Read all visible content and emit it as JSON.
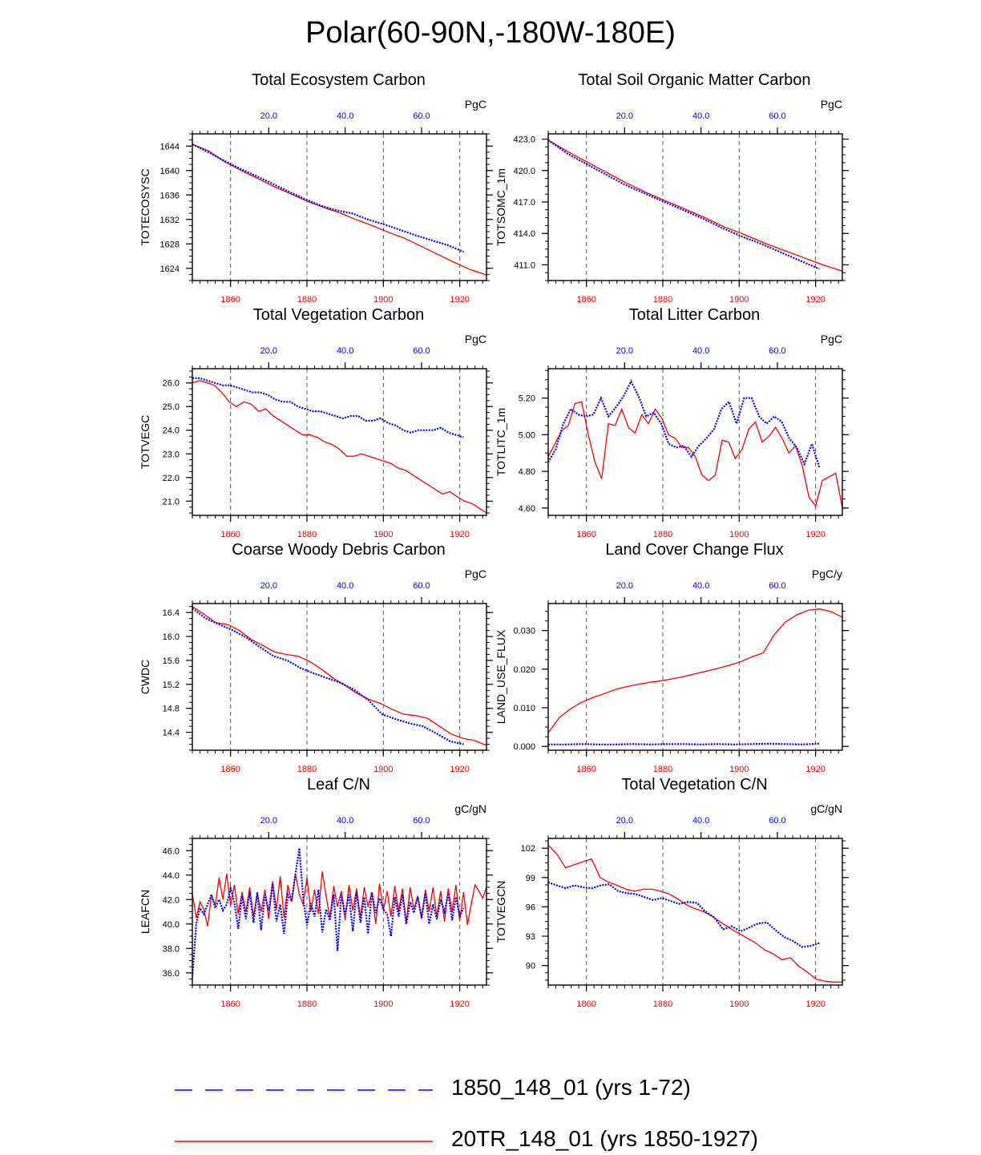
{
  "figure": {
    "title": "Polar(60-90N,-180W-180E)",
    "legend": {
      "items": [
        {
          "label": "1850_148_01 (yrs 1-72)",
          "color": "#0000ff",
          "style": "dashed"
        },
        {
          "label": "20TR_148_01 (yrs 1850-1927)",
          "color": "#ff0000",
          "style": "solid"
        }
      ]
    },
    "colors": {
      "control": "#0000ff",
      "transient": "#ff0000"
    }
  },
  "chart_data": [
    {
      "type": "line",
      "title": "Total Ecosystem Carbon",
      "ylabel": "TOTECOSYSC",
      "units": "PgC",
      "ylim": [
        1622,
        1646
      ],
      "yticks": [
        1624,
        1628,
        1632,
        1636,
        1640,
        1644
      ],
      "ytick_labels": [
        "1624",
        "1628",
        "1632",
        "1636",
        "1640",
        "1644"
      ],
      "xlim_bottom": [
        1850,
        1927
      ],
      "xticks_bottom": [
        "1860",
        "1880",
        "1900",
        "1920"
      ],
      "xticks_top": [
        "20.0",
        "40.0",
        "60.0"
      ],
      "series": [
        {
          "name": "20TR_148_01",
          "x_start": 1850,
          "x_end": 1927,
          "values": [
            1644.3,
            1643.2,
            1641.4,
            1640.0,
            1638.7,
            1637.4,
            1636.2,
            1635.0,
            1634.0,
            1633.1,
            1632.0,
            1631.0,
            1629.9,
            1628.9,
            1627.6,
            1626.3,
            1625.0,
            1623.8,
            1622.9
          ]
        },
        {
          "name": "1850_148_01",
          "x_start": 1850,
          "x_end": 1921,
          "values": [
            1644.3,
            1643.0,
            1641.6,
            1640.3,
            1639.1,
            1637.9,
            1636.6,
            1635.4,
            1634.3,
            1633.5,
            1633.0,
            1632.0,
            1631.2,
            1630.3,
            1629.4,
            1628.6,
            1627.8,
            1626.7
          ]
        }
      ]
    },
    {
      "type": "line",
      "title": "Total Soil Organic Matter Carbon",
      "ylabel": "TOTSOMC_1m",
      "units": "PgC",
      "ylim": [
        409.5,
        423.5
      ],
      "yticks": [
        411,
        414,
        417,
        420,
        423
      ],
      "ytick_labels": [
        "411.0",
        "414.0",
        "417.0",
        "420.0",
        "423.0"
      ],
      "xlim_bottom": [
        1850,
        1927
      ],
      "xticks_bottom": [
        "1860",
        "1880",
        "1900",
        "1920"
      ],
      "xticks_top": [
        "20.0",
        "40.0",
        "60.0"
      ],
      "series": [
        {
          "name": "20TR_148_01",
          "x_start": 1850,
          "x_end": 1927,
          "values": [
            422.9,
            421.8,
            420.8,
            419.8,
            418.8,
            417.9,
            417.1,
            416.3,
            415.5,
            414.6,
            413.9,
            413.1,
            412.4,
            411.7,
            411.0,
            410.4
          ]
        },
        {
          "name": "1850_148_01",
          "x_start": 1850,
          "x_end": 1921,
          "values": [
            422.9,
            421.6,
            420.6,
            419.6,
            418.6,
            417.8,
            417.0,
            416.2,
            415.4,
            414.5,
            413.7,
            413.0,
            412.2,
            411.4,
            410.6
          ]
        }
      ]
    },
    {
      "type": "line",
      "title": "Total Vegetation Carbon",
      "ylabel": "TOTVEGC",
      "units": "PgC",
      "ylim": [
        20.4,
        26.6
      ],
      "yticks": [
        21,
        22,
        23,
        24,
        25,
        26
      ],
      "ytick_labels": [
        "21.0",
        "22.0",
        "23.0",
        "24.0",
        "25.0",
        "26.0"
      ],
      "xlim_bottom": [
        1850,
        1927
      ],
      "xticks_bottom": [
        "1860",
        "1880",
        "1900",
        "1920"
      ],
      "xticks_top": [
        "20.0",
        "40.0",
        "60.0"
      ],
      "series": [
        {
          "name": "20TR_148_01",
          "x_start": 1850,
          "x_end": 1927,
          "values": [
            26.0,
            26.1,
            26.0,
            25.9,
            25.6,
            25.2,
            25.0,
            25.2,
            25.1,
            24.8,
            24.9,
            24.6,
            24.4,
            24.2,
            24.0,
            23.8,
            23.8,
            23.7,
            23.5,
            23.4,
            23.2,
            22.9,
            22.9,
            23.0,
            22.9,
            22.8,
            22.7,
            22.6,
            22.4,
            22.3,
            22.1,
            21.9,
            21.7,
            21.5,
            21.3,
            21.4,
            21.2,
            21.0,
            20.9,
            20.7,
            20.5
          ]
        },
        {
          "name": "1850_148_01",
          "x_start": 1850,
          "x_end": 1921,
          "values": [
            26.2,
            26.2,
            26.1,
            26.0,
            25.9,
            25.9,
            25.8,
            25.7,
            25.6,
            25.6,
            25.5,
            25.3,
            25.2,
            25.2,
            25.0,
            24.9,
            24.8,
            24.8,
            24.7,
            24.6,
            24.5,
            24.6,
            24.6,
            24.4,
            24.4,
            24.5,
            24.3,
            24.2,
            24.0,
            23.9,
            24.0,
            24.0,
            24.0,
            24.1,
            23.9,
            23.8,
            23.7
          ]
        }
      ]
    },
    {
      "type": "line",
      "title": "Total Litter Carbon",
      "ylabel": "TOTLITC_1m",
      "units": "PgC",
      "ylim": [
        4.56,
        5.36
      ],
      "yticks": [
        4.6,
        4.8,
        5.0,
        5.2
      ],
      "ytick_labels": [
        "4.60",
        "4.80",
        "5.00",
        "5.20"
      ],
      "xlim_bottom": [
        1850,
        1927
      ],
      "xticks_bottom": [
        "1860",
        "1880",
        "1900",
        "1920"
      ],
      "xticks_top": [
        "20.0",
        "40.0",
        "60.0"
      ],
      "series": [
        {
          "name": "20TR_148_01",
          "x_start": 1850,
          "x_end": 1927,
          "values": [
            4.88,
            4.95,
            5.02,
            5.05,
            5.17,
            5.18,
            5.0,
            4.85,
            4.76,
            5.06,
            5.05,
            5.14,
            5.04,
            5.01,
            5.11,
            5.06,
            5.14,
            5.09,
            5.0,
            4.98,
            4.93,
            4.93,
            4.88,
            4.78,
            4.75,
            4.78,
            4.97,
            4.96,
            4.87,
            4.92,
            5.03,
            5.07,
            4.96,
            4.99,
            5.04,
            4.98,
            4.9,
            4.94,
            4.83,
            4.66,
            4.61,
            4.75,
            4.77,
            4.79,
            4.6
          ]
        },
        {
          "name": "1850_148_01",
          "x_start": 1850,
          "x_end": 1921,
          "values": [
            4.85,
            4.92,
            5.06,
            5.14,
            5.11,
            5.1,
            5.11,
            5.2,
            5.1,
            5.15,
            5.21,
            5.29,
            5.21,
            5.1,
            5.12,
            5.06,
            4.95,
            4.93,
            4.94,
            4.88,
            4.94,
            4.98,
            5.03,
            5.14,
            5.18,
            5.06,
            5.2,
            5.2,
            5.1,
            5.06,
            5.1,
            5.07,
            4.98,
            4.93,
            4.84,
            4.95,
            4.82
          ]
        }
      ]
    },
    {
      "type": "line",
      "title": "Coarse Woody Debris Carbon",
      "ylabel": "CWDC",
      "units": "PgC",
      "ylim": [
        14.1,
        16.55
      ],
      "yticks": [
        14.4,
        14.8,
        15.2,
        15.6,
        16.0,
        16.4
      ],
      "ytick_labels": [
        "14.4",
        "14.8",
        "15.2",
        "15.6",
        "16.0",
        "16.4"
      ],
      "xlim_bottom": [
        1850,
        1927
      ],
      "xticks_bottom": [
        "1860",
        "1880",
        "1900",
        "1920"
      ],
      "xticks_top": [
        "20.0",
        "40.0",
        "60.0"
      ],
      "series": [
        {
          "name": "20TR_148_01",
          "x_start": 1850,
          "x_end": 1927,
          "values": [
            16.5,
            16.37,
            16.23,
            16.2,
            16.1,
            15.95,
            15.85,
            15.74,
            15.7,
            15.67,
            15.58,
            15.45,
            15.3,
            15.18,
            15.05,
            14.95,
            14.88,
            14.78,
            14.7,
            14.68,
            14.63,
            14.5,
            14.37,
            14.3,
            14.26,
            14.18
          ]
        },
        {
          "name": "1850_148_01",
          "x_start": 1850,
          "x_end": 1921,
          "values": [
            16.47,
            16.3,
            16.2,
            16.1,
            15.98,
            15.82,
            15.67,
            15.6,
            15.47,
            15.38,
            15.3,
            15.22,
            15.1,
            14.93,
            14.7,
            14.62,
            14.55,
            14.5,
            14.38,
            14.25,
            14.2
          ]
        }
      ]
    },
    {
      "type": "line",
      "title": "Land Cover Change Flux",
      "ylabel": "LAND_USE_FLUX",
      "units": "PgC/y",
      "ylim": [
        -0.001,
        0.037
      ],
      "yticks": [
        0.0,
        0.01,
        0.02,
        0.03
      ],
      "ytick_labels": [
        "0.000",
        "0.010",
        "0.020",
        "0.030"
      ],
      "xlim_bottom": [
        1850,
        1927
      ],
      "xticks_bottom": [
        "1860",
        "1880",
        "1900",
        "1920"
      ],
      "xticks_top": [
        "20.0",
        "40.0",
        "60.0"
      ],
      "series": [
        {
          "name": "20TR_148_01",
          "x_start": 1850,
          "x_end": 1927,
          "values": [
            0.0035,
            0.0075,
            0.0098,
            0.0115,
            0.0127,
            0.0137,
            0.0148,
            0.0155,
            0.0161,
            0.0166,
            0.017,
            0.0175,
            0.0181,
            0.0188,
            0.0195,
            0.0202,
            0.021,
            0.0219,
            0.0232,
            0.0242,
            0.029,
            0.0323,
            0.0341,
            0.0353,
            0.0356,
            0.0349,
            0.0335
          ]
        },
        {
          "name": "1850_148_01",
          "x_start": 1850,
          "x_end": 1921,
          "values": [
            0.0005,
            0.0005,
            0.0006,
            0.0005,
            0.0005,
            0.0006,
            0.0005,
            0.0006,
            0.0006,
            0.0005,
            0.0006,
            0.0005,
            0.0006,
            0.0007,
            0.0006,
            0.0005,
            0.0007
          ]
        }
      ]
    },
    {
      "type": "line",
      "title": "Leaf C/N",
      "ylabel": "LEAFCN",
      "units": "gC/gN",
      "ylim": [
        35.0,
        47.0
      ],
      "yticks": [
        36,
        38,
        40,
        42,
        44,
        46
      ],
      "ytick_labels": [
        "36.0",
        "38.0",
        "40.0",
        "42.0",
        "44.0",
        "46.0"
      ],
      "xlim_bottom": [
        1850,
        1927
      ],
      "xticks_bottom": [
        "1860",
        "1880",
        "1900",
        "1920"
      ],
      "xticks_top": [
        "20.0",
        "40.0",
        "60.0"
      ],
      "series": [
        {
          "name": "20TR_148_01",
          "x_start": 1850,
          "x_end": 1927,
          "values": [
            42.5,
            40.5,
            41.8,
            41.2,
            39.8,
            42.4,
            41.5,
            43.8,
            42.0,
            44.1,
            41.5,
            43.2,
            40.8,
            42.6,
            41.0,
            43.0,
            40.6,
            42.5,
            41.0,
            42.8,
            40.4,
            43.5,
            41.2,
            43.9,
            40.5,
            43.2,
            41.8,
            44.1,
            42.4,
            41.6,
            43.8,
            41.0,
            42.8,
            40.8,
            44.3,
            42.3,
            40.5,
            43.1,
            41.4,
            42.7,
            40.3,
            43.2,
            41.1,
            42.9,
            40.5,
            43.0,
            41.4,
            42.6,
            40.0,
            43.3,
            41.1,
            42.7,
            40.6,
            43.1,
            41.0,
            42.9,
            40.1,
            43.0,
            41.2,
            42.3,
            40.4,
            42.8,
            41.0,
            43.0,
            40.6,
            42.7,
            40.2,
            42.9,
            41.0,
            43.2,
            40.3,
            42.6,
            39.9,
            41.6,
            43.2,
            42.7,
            42.1,
            43.0
          ]
        },
        {
          "name": "1850_148_01",
          "x_start": 1850,
          "x_end": 1921,
          "values": [
            35.7,
            40.0,
            41.3,
            40.8,
            41.6,
            42.4,
            41.3,
            42.0,
            41.1,
            41.6,
            42.9,
            41.8,
            39.6,
            42.3,
            40.4,
            42.6,
            40.1,
            42.6,
            39.5,
            42.4,
            41.1,
            43.3,
            40.2,
            41.6,
            39.2,
            42.4,
            41.9,
            44.1,
            46.2,
            42.1,
            39.9,
            41.7,
            40.6,
            42.8,
            39.3,
            41.2,
            40.3,
            42.4,
            37.8,
            42.4,
            40.8,
            42.4,
            39.4,
            42.6,
            40.1,
            42.2,
            39.2,
            42.6,
            40.9,
            42.1,
            41.2,
            40.8,
            39.0,
            42.2,
            40.6,
            42.4,
            40.0,
            41.8,
            40.9,
            42.2,
            40.5,
            42.5,
            40.0,
            41.6,
            40.4,
            42.0,
            41.0,
            42.5,
            40.3,
            42.2,
            40.6,
            41.3
          ]
        }
      ]
    },
    {
      "type": "line",
      "title": "Total Vegetation C/N",
      "ylabel": "TOTVEGCN",
      "units": "gC/gN",
      "ylim": [
        88.0,
        103.0
      ],
      "yticks": [
        90,
        93,
        96,
        99,
        102
      ],
      "ytick_labels": [
        "90",
        "93",
        "96",
        "99",
        "102"
      ],
      "xlim_bottom": [
        1850,
        1927
      ],
      "xticks_bottom": [
        "1860",
        "1880",
        "1900",
        "1920"
      ],
      "xticks_top": [
        "20.0",
        "40.0",
        "60.0"
      ],
      "series": [
        {
          "name": "20TR_148_01",
          "x_start": 1850,
          "x_end": 1927,
          "values": [
            102.3,
            101.4,
            100.0,
            100.3,
            100.6,
            100.9,
            99.0,
            98.5,
            98.2,
            97.8,
            97.6,
            97.8,
            97.8,
            97.6,
            97.3,
            96.8,
            96.2,
            95.8,
            95.5,
            95.0,
            94.4,
            93.8,
            93.3,
            92.8,
            92.3,
            91.6,
            91.2,
            90.6,
            90.8,
            89.9,
            89.3,
            88.6,
            88.4,
            88.3,
            88.3
          ]
        },
        {
          "name": "1850_148_01",
          "x_start": 1850,
          "x_end": 1921,
          "values": [
            98.5,
            98.2,
            97.9,
            98.2,
            98.0,
            97.9,
            98.2,
            98.3,
            97.6,
            97.4,
            97.3,
            97.0,
            96.7,
            96.9,
            96.6,
            96.3,
            96.5,
            96.4,
            95.5,
            94.9,
            93.7,
            94.0,
            93.5,
            93.9,
            94.3,
            94.4,
            93.6,
            92.9,
            92.5,
            91.9,
            92.0,
            92.3
          ]
        }
      ]
    }
  ]
}
